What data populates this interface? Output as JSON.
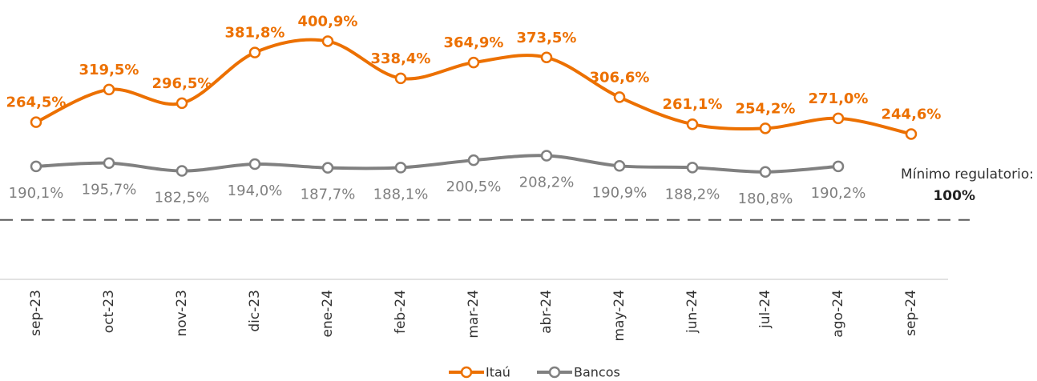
{
  "chart_data": {
    "type": "line",
    "categories": [
      "sep-23",
      "oct-23",
      "nov-23",
      "dic-23",
      "ene-24",
      "feb-24",
      "mar-24",
      "abr-24",
      "may-24",
      "jun-24",
      "jul-24",
      "ago-24",
      "sep-24"
    ],
    "series": [
      {
        "name": "Itaú",
        "color": "#ec7000",
        "values": [
          264.5,
          319.5,
          296.5,
          381.8,
          400.9,
          338.4,
          364.9,
          373.5,
          306.6,
          261.1,
          254.2,
          271.0,
          244.6
        ],
        "value_labels": [
          "264,5%",
          "319,5%",
          "296,5%",
          "381,8%",
          "400,9%",
          "338,4%",
          "364,9%",
          "373,5%",
          "306,6%",
          "261,1%",
          "254,2%",
          "271,0%",
          "244,6%"
        ]
      },
      {
        "name": "Bancos",
        "color": "#808080",
        "values": [
          190.1,
          195.7,
          182.5,
          194.0,
          187.7,
          188.1,
          200.5,
          208.2,
          190.9,
          188.2,
          180.8,
          190.2,
          null
        ],
        "value_labels": [
          "190,1%",
          "195,7%",
          "182,5%",
          "194,0%",
          "187,7%",
          "188,1%",
          "200,5%",
          "208,2%",
          "190,9%",
          "188,2%",
          "180,8%",
          "190,2%",
          null
        ]
      }
    ],
    "ylim": [
      0,
      450
    ],
    "reference": {
      "value": 100,
      "text": "Mínimo regulatorio:",
      "label": "100%"
    },
    "legend": "bottom"
  }
}
